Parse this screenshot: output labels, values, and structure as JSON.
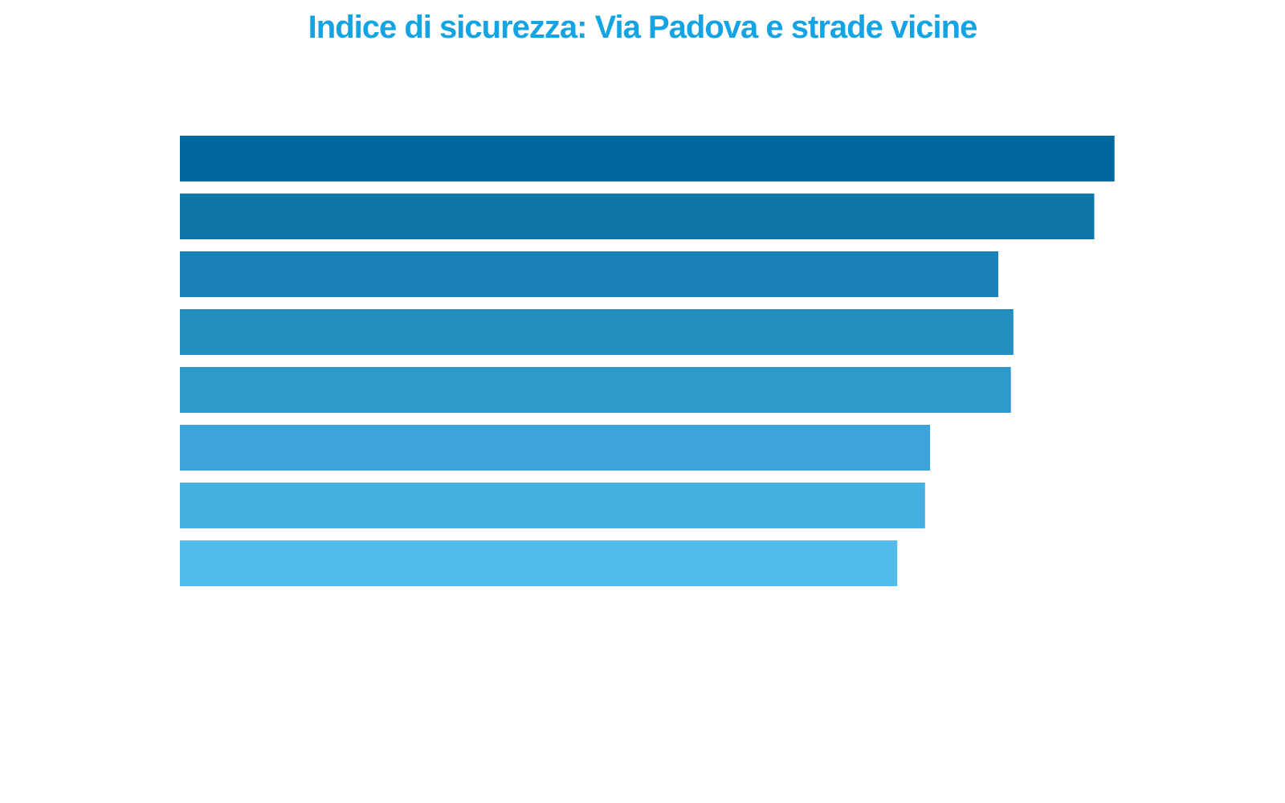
{
  "chart_data": {
    "type": "bar",
    "orientation": "horizontal",
    "title": "Indice di sicurezza: Via Padova e strade vicine",
    "title_color": "#14a3e3",
    "values": [
      92.5,
      90.5,
      81,
      82.5,
      82.25,
      74.25,
      73.75,
      71
    ],
    "xlim": [
      0,
      100
    ],
    "colors": [
      "#00679f",
      "#0e76a8",
      "#1a82b7",
      "#248dc0",
      "#3099cc",
      "#3ca4d8",
      "#47b0e2",
      "#52bced"
    ],
    "grid": false,
    "legend": "none"
  }
}
